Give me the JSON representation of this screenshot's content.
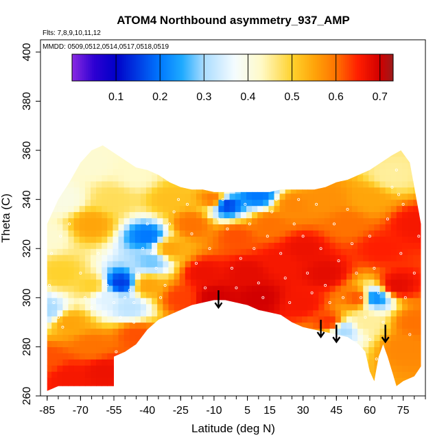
{
  "chart_data": {
    "type": "heatmap",
    "title": "ATOM4 Northbound asymmetry_937_AMP",
    "flights_note": "Flts: 7,8,9,10,11,12",
    "dates_note": "MMDD: 0509,0512,0514,0517,0518,0519",
    "xlabel": "Latitude (deg N)",
    "ylabel": "Theta (C)",
    "xlim": [
      -88,
      85
    ],
    "ylim": [
      260,
      405
    ],
    "x_ticks": [
      -85,
      -70,
      -55,
      -40,
      -25,
      -10,
      5,
      15,
      30,
      45,
      60,
      75
    ],
    "x_tick_labels": [
      "-85",
      "-70",
      "-55",
      "-40",
      "-25",
      "-10",
      "5",
      "15",
      "30",
      "45",
      "60",
      "75"
    ],
    "y_ticks": [
      260,
      280,
      300,
      320,
      340,
      360,
      380,
      400
    ],
    "y_tick_labels": [
      "260",
      "280",
      "300",
      "320",
      "340",
      "360",
      "380",
      "400"
    ],
    "colorbar": {
      "range": [
        0.0,
        0.73
      ],
      "ticks": [
        0.1,
        0.2,
        0.3,
        0.4,
        0.5,
        0.6,
        0.7
      ],
      "tick_labels": [
        "0.1",
        "0.2",
        "0.3",
        "0.4",
        "0.5",
        "0.6",
        "0.7"
      ],
      "stops": [
        {
          "v": 0.0,
          "color": "#8a2be2"
        },
        {
          "v": 0.05,
          "color": "#2d00d2"
        },
        {
          "v": 0.1,
          "color": "#0000c8"
        },
        {
          "v": 0.2,
          "color": "#0078ff"
        },
        {
          "v": 0.25,
          "color": "#1eaaff"
        },
        {
          "v": 0.3,
          "color": "#aadcff"
        },
        {
          "v": 0.37,
          "color": "#f5fcff"
        },
        {
          "v": 0.43,
          "color": "#fffac8"
        },
        {
          "v": 0.5,
          "color": "#ffd22d"
        },
        {
          "v": 0.55,
          "color": "#ffa50a"
        },
        {
          "v": 0.6,
          "color": "#ff7300"
        },
        {
          "v": 0.65,
          "color": "#ff1e00"
        },
        {
          "v": 0.7,
          "color": "#d20000"
        },
        {
          "v": 0.73,
          "color": "#9a1b1b"
        }
      ]
    },
    "bottom_boundary": [
      [
        -85,
        262
      ],
      [
        -80,
        264
      ],
      [
        -75,
        264
      ],
      [
        -70,
        264
      ],
      [
        -65,
        264
      ],
      [
        -60,
        264
      ],
      [
        -55,
        264
      ],
      [
        -55,
        276
      ],
      [
        -50,
        278
      ],
      [
        -45,
        281
      ],
      [
        -40,
        287
      ],
      [
        -35,
        291
      ],
      [
        -30,
        293
      ],
      [
        -25,
        295
      ],
      [
        -20,
        297
      ],
      [
        -15,
        298
      ],
      [
        -10,
        299
      ],
      [
        -5,
        299
      ],
      [
        0,
        298
      ],
      [
        5,
        297
      ],
      [
        10,
        295
      ],
      [
        15,
        294
      ],
      [
        20,
        293
      ],
      [
        25,
        290
      ],
      [
        30,
        288
      ],
      [
        35,
        287
      ],
      [
        40,
        286
      ],
      [
        45,
        285
      ],
      [
        50,
        284
      ],
      [
        55,
        281
      ],
      [
        58,
        278
      ],
      [
        60,
        270
      ],
      [
        62,
        266
      ],
      [
        64,
        276
      ],
      [
        66,
        281
      ],
      [
        68,
        276
      ],
      [
        70,
        270
      ],
      [
        72,
        264
      ],
      [
        75,
        266
      ],
      [
        80,
        268
      ],
      [
        83,
        272
      ]
    ],
    "top_boundary": [
      [
        -85,
        330
      ],
      [
        -80,
        340
      ],
      [
        -75,
        347
      ],
      [
        -70,
        355
      ],
      [
        -65,
        360
      ],
      [
        -60,
        362
      ],
      [
        -55,
        359
      ],
      [
        -50,
        356
      ],
      [
        -45,
        353
      ],
      [
        -40,
        352
      ],
      [
        -35,
        350
      ],
      [
        -30,
        347
      ],
      [
        -25,
        345
      ],
      [
        -20,
        344
      ],
      [
        -15,
        344
      ],
      [
        -10,
        343
      ],
      [
        -5,
        343
      ],
      [
        0,
        343
      ],
      [
        5,
        343
      ],
      [
        10,
        343
      ],
      [
        15,
        343
      ],
      [
        20,
        344
      ],
      [
        25,
        344
      ],
      [
        30,
        344
      ],
      [
        35,
        344
      ],
      [
        40,
        345
      ],
      [
        45,
        347
      ],
      [
        50,
        348
      ],
      [
        55,
        350
      ],
      [
        60,
        352
      ],
      [
        65,
        355
      ],
      [
        70,
        358
      ],
      [
        74,
        360
      ],
      [
        78,
        355
      ],
      [
        83,
        330
      ]
    ],
    "color_anchors": [
      {
        "x": -85,
        "y": 325,
        "v": 0.42
      },
      {
        "x": -85,
        "y": 295,
        "v": 0.3
      },
      {
        "x": -85,
        "y": 275,
        "v": 0.62
      },
      {
        "x": -78,
        "y": 340,
        "v": 0.4
      },
      {
        "x": -78,
        "y": 310,
        "v": 0.5
      },
      {
        "x": -75,
        "y": 290,
        "v": 0.55
      },
      {
        "x": -75,
        "y": 268,
        "v": 0.66
      },
      {
        "x": -65,
        "y": 355,
        "v": 0.42
      },
      {
        "x": -65,
        "y": 330,
        "v": 0.55
      },
      {
        "x": -65,
        "y": 305,
        "v": 0.5
      },
      {
        "x": -65,
        "y": 280,
        "v": 0.6
      },
      {
        "x": -60,
        "y": 270,
        "v": 0.67
      },
      {
        "x": -58,
        "y": 300,
        "v": 0.35
      },
      {
        "x": -52,
        "y": 306,
        "v": 0.15
      },
      {
        "x": -55,
        "y": 340,
        "v": 0.48
      },
      {
        "x": -48,
        "y": 296,
        "v": 0.32
      },
      {
        "x": -45,
        "y": 350,
        "v": 0.43
      },
      {
        "x": -40,
        "y": 325,
        "v": 0.2
      },
      {
        "x": -38,
        "y": 315,
        "v": 0.28
      },
      {
        "x": -40,
        "y": 305,
        "v": 0.55
      },
      {
        "x": -45,
        "y": 285,
        "v": 0.62
      },
      {
        "x": -30,
        "y": 340,
        "v": 0.52
      },
      {
        "x": -30,
        "y": 320,
        "v": 0.55
      },
      {
        "x": -25,
        "y": 300,
        "v": 0.63
      },
      {
        "x": -20,
        "y": 330,
        "v": 0.6
      },
      {
        "x": -15,
        "y": 310,
        "v": 0.67
      },
      {
        "x": -10,
        "y": 300,
        "v": 0.7
      },
      {
        "x": -10,
        "y": 340,
        "v": 0.6
      },
      {
        "x": -5,
        "y": 338,
        "v": 0.15
      },
      {
        "x": 0,
        "y": 325,
        "v": 0.62
      },
      {
        "x": 5,
        "y": 310,
        "v": 0.68
      },
      {
        "x": 10,
        "y": 342,
        "v": 0.2
      },
      {
        "x": 10,
        "y": 300,
        "v": 0.7
      },
      {
        "x": 15,
        "y": 330,
        "v": 0.6
      },
      {
        "x": 20,
        "y": 315,
        "v": 0.66
      },
      {
        "x": 25,
        "y": 338,
        "v": 0.58
      },
      {
        "x": 30,
        "y": 320,
        "v": 0.67
      },
      {
        "x": 30,
        "y": 298,
        "v": 0.66
      },
      {
        "x": 40,
        "y": 340,
        "v": 0.57
      },
      {
        "x": 40,
        "y": 310,
        "v": 0.68
      },
      {
        "x": 42,
        "y": 290,
        "v": 0.64
      },
      {
        "x": 48,
        "y": 287,
        "v": 0.3
      },
      {
        "x": 50,
        "y": 330,
        "v": 0.6
      },
      {
        "x": 55,
        "y": 300,
        "v": 0.62
      },
      {
        "x": 58,
        "y": 290,
        "v": 0.45
      },
      {
        "x": 62,
        "y": 300,
        "v": 0.22
      },
      {
        "x": 60,
        "y": 340,
        "v": 0.55
      },
      {
        "x": 65,
        "y": 320,
        "v": 0.65
      },
      {
        "x": 70,
        "y": 350,
        "v": 0.45
      },
      {
        "x": 72,
        "y": 305,
        "v": 0.68
      },
      {
        "x": 75,
        "y": 280,
        "v": 0.58
      },
      {
        "x": 80,
        "y": 330,
        "v": 0.66
      },
      {
        "x": 80,
        "y": 290,
        "v": 0.6
      }
    ],
    "arrows": [
      {
        "x": -8,
        "theta": 296
      },
      {
        "x": 38,
        "theta": 284
      },
      {
        "x": 45,
        "theta": 282
      },
      {
        "x": 67,
        "theta": 282
      }
    ],
    "sample_points": [
      [
        -84,
        305
      ],
      [
        -82,
        298
      ],
      [
        -80,
        292
      ],
      [
        -78,
        288
      ],
      [
        -83,
        318
      ],
      [
        -79,
        325
      ],
      [
        -75,
        330
      ],
      [
        -70,
        310
      ],
      [
        -68,
        300
      ],
      [
        -65,
        296
      ],
      [
        -62,
        318
      ],
      [
        -58,
        305
      ],
      [
        -55,
        298
      ],
      [
        -52,
        292
      ],
      [
        -50,
        300
      ],
      [
        -48,
        303
      ],
      [
        -46,
        298
      ],
      [
        -44,
        310
      ],
      [
        -42,
        320
      ],
      [
        -40,
        330
      ],
      [
        -38,
        318
      ],
      [
        -36,
        312
      ],
      [
        -34,
        300
      ],
      [
        -32,
        305
      ],
      [
        -30,
        330
      ],
      [
        -28,
        335
      ],
      [
        -26,
        340
      ],
      [
        -22,
        338
      ],
      [
        -20,
        326
      ],
      [
        -18,
        314
      ],
      [
        -14,
        304
      ],
      [
        -12,
        320
      ],
      [
        -8,
        332
      ],
      [
        -6,
        340
      ],
      [
        -4,
        328
      ],
      [
        -2,
        312
      ],
      [
        0,
        304
      ],
      [
        2,
        316
      ],
      [
        4,
        338
      ],
      [
        6,
        330
      ],
      [
        8,
        320
      ],
      [
        10,
        306
      ],
      [
        12,
        300
      ],
      [
        14,
        325
      ],
      [
        16,
        335
      ],
      [
        18,
        340
      ],
      [
        20,
        318
      ],
      [
        22,
        308
      ],
      [
        24,
        298
      ],
      [
        26,
        330
      ],
      [
        28,
        340
      ],
      [
        30,
        325
      ],
      [
        32,
        310
      ],
      [
        34,
        302
      ],
      [
        36,
        338
      ],
      [
        38,
        320
      ],
      [
        40,
        305
      ],
      [
        42,
        298
      ],
      [
        44,
        330
      ],
      [
        46,
        315
      ],
      [
        48,
        300
      ],
      [
        50,
        336
      ],
      [
        52,
        322
      ],
      [
        54,
        310
      ],
      [
        56,
        300
      ],
      [
        58,
        292
      ],
      [
        60,
        325
      ],
      [
        62,
        312
      ],
      [
        64,
        302
      ],
      [
        66,
        290
      ],
      [
        68,
        332
      ],
      [
        70,
        345
      ],
      [
        72,
        352
      ],
      [
        74,
        318
      ],
      [
        76,
        300
      ],
      [
        78,
        285
      ],
      [
        80,
        310
      ],
      [
        82,
        325
      ],
      [
        -54,
        278
      ],
      [
        -46,
        290
      ],
      [
        60,
        283
      ],
      [
        63,
        275
      ],
      [
        70,
        268
      ],
      [
        73,
        342
      ],
      [
        75,
        338
      ]
    ]
  }
}
